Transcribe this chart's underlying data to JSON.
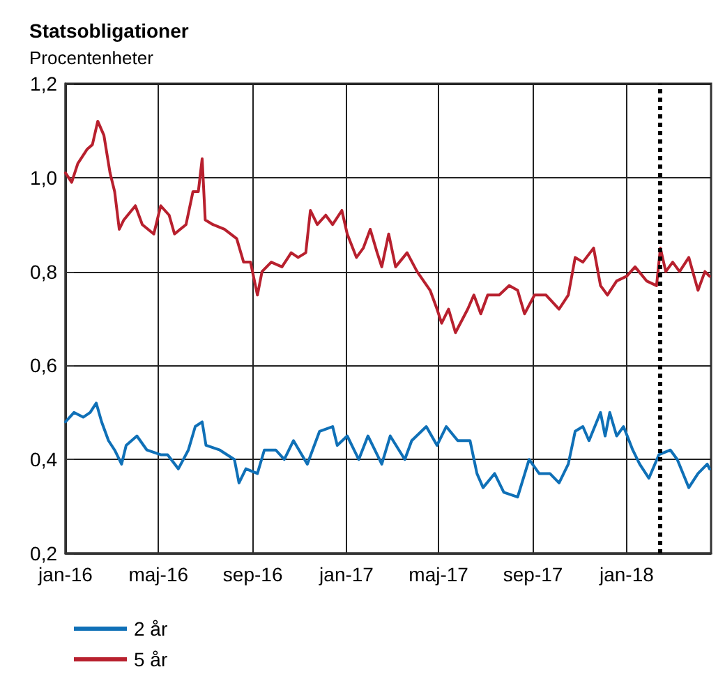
{
  "chart_data": {
    "type": "line",
    "title": "Statsobligationer",
    "subtitle": "Procentenheter",
    "xlim": [
      "2016-01-01",
      "2018-04-21"
    ],
    "xticks": [
      {
        "value": "2016-01-01",
        "label": "jan-16"
      },
      {
        "value": "2016-05-01",
        "label": "maj-16"
      },
      {
        "value": "2016-09-01",
        "label": "sep-16"
      },
      {
        "value": "2017-01-01",
        "label": "jan-17"
      },
      {
        "value": "2017-05-01",
        "label": "maj-17"
      },
      {
        "value": "2017-09-01",
        "label": "sep-17"
      },
      {
        "value": "2018-01-01",
        "label": "jan-18"
      }
    ],
    "ylim": [
      0.2,
      1.2
    ],
    "yticks": [
      {
        "value": 0.2,
        "label": "0,2"
      },
      {
        "value": 0.4,
        "label": "0,4"
      },
      {
        "value": 0.6,
        "label": "0,6"
      },
      {
        "value": 0.8,
        "label": "0,8"
      },
      {
        "value": 1.0,
        "label": "1,0"
      },
      {
        "value": 1.2,
        "label": "1,2"
      }
    ],
    "grid": true,
    "legend": "bottom left",
    "marker": "none",
    "line_style": "solid",
    "ref_lines": [
      {
        "axis": "x",
        "value": "2018-02-13",
        "color": "#000000",
        "line_style": "dotted"
      }
    ],
    "series": [
      {
        "name": "2 år",
        "color": "#0f70b7",
        "x": [
          "2016-01-01",
          "2016-01-12",
          "2016-01-24",
          "2016-02-02",
          "2016-02-10",
          "2016-02-17",
          "2016-02-26",
          "2016-03-05",
          "2016-03-14",
          "2016-03-20",
          "2016-04-03",
          "2016-04-16",
          "2016-05-04",
          "2016-05-13",
          "2016-05-27",
          "2016-06-09",
          "2016-06-18",
          "2016-06-27",
          "2016-07-02",
          "2016-07-20",
          "2016-08-08",
          "2016-08-14",
          "2016-08-23",
          "2016-09-07",
          "2016-09-16",
          "2016-10-01",
          "2016-10-12",
          "2016-10-24",
          "2016-11-11",
          "2016-11-27",
          "2016-12-14",
          "2016-12-20",
          "2017-01-02",
          "2017-01-17",
          "2017-01-29",
          "2017-02-04",
          "2017-02-16",
          "2017-02-27",
          "2017-03-18",
          "2017-03-27",
          "2017-04-15",
          "2017-04-29",
          "2017-05-11",
          "2017-05-26",
          "2017-06-11",
          "2017-06-20",
          "2017-06-28",
          "2017-07-13",
          "2017-07-25",
          "2017-08-12",
          "2017-08-27",
          "2017-09-09",
          "2017-09-23",
          "2017-10-05",
          "2017-10-17",
          "2017-10-26",
          "2017-11-05",
          "2017-11-13",
          "2017-11-28",
          "2017-12-04",
          "2017-12-10",
          "2017-12-19",
          "2017-12-28",
          "2018-01-09",
          "2018-01-18",
          "2018-01-30",
          "2018-02-12",
          "2018-02-27",
          "2018-03-08",
          "2018-03-23",
          "2018-04-04",
          "2018-04-16",
          "2018-04-19"
        ],
        "values": [
          0.48,
          0.5,
          0.49,
          0.5,
          0.52,
          0.48,
          0.44,
          0.42,
          0.39,
          0.43,
          0.45,
          0.42,
          0.41,
          0.41,
          0.38,
          0.42,
          0.47,
          0.48,
          0.43,
          0.42,
          0.4,
          0.35,
          0.38,
          0.37,
          0.42,
          0.42,
          0.4,
          0.44,
          0.39,
          0.46,
          0.47,
          0.43,
          0.45,
          0.4,
          0.45,
          0.43,
          0.39,
          0.45,
          0.4,
          0.44,
          0.47,
          0.43,
          0.47,
          0.44,
          0.44,
          0.37,
          0.34,
          0.37,
          0.33,
          0.32,
          0.4,
          0.37,
          0.37,
          0.35,
          0.39,
          0.46,
          0.47,
          0.44,
          0.5,
          0.45,
          0.5,
          0.45,
          0.47,
          0.42,
          0.39,
          0.36,
          0.41,
          0.42,
          0.4,
          0.34,
          0.37,
          0.39,
          0.38
        ]
      },
      {
        "name": "5 år",
        "color": "#b8202e",
        "x": [
          "2016-01-01",
          "2016-01-09",
          "2016-01-17",
          "2016-01-29",
          "2016-02-05",
          "2016-02-12",
          "2016-02-20",
          "2016-02-28",
          "2016-03-05",
          "2016-03-11",
          "2016-03-17",
          "2016-04-01",
          "2016-04-10",
          "2016-04-25",
          "2016-05-04",
          "2016-05-15",
          "2016-05-22",
          "2016-06-06",
          "2016-06-15",
          "2016-06-22",
          "2016-06-27",
          "2016-07-01",
          "2016-07-11",
          "2016-07-26",
          "2016-08-11",
          "2016-08-20",
          "2016-08-29",
          "2016-09-07",
          "2016-09-13",
          "2016-09-25",
          "2016-10-09",
          "2016-10-21",
          "2016-10-30",
          "2016-11-09",
          "2016-11-15",
          "2016-11-24",
          "2016-12-05",
          "2016-12-14",
          "2016-12-26",
          "2017-01-02",
          "2017-01-14",
          "2017-01-23",
          "2017-02-01",
          "2017-02-10",
          "2017-02-16",
          "2017-02-25",
          "2017-03-06",
          "2017-03-21",
          "2017-04-03",
          "2017-04-20",
          "2017-04-29",
          "2017-05-05",
          "2017-05-14",
          "2017-05-23",
          "2017-06-08",
          "2017-06-16",
          "2017-06-25",
          "2017-07-04",
          "2017-07-19",
          "2017-08-01",
          "2017-08-12",
          "2017-08-21",
          "2017-09-03",
          "2017-09-18",
          "2017-10-05",
          "2017-10-17",
          "2017-10-26",
          "2017-11-05",
          "2017-11-19",
          "2017-11-28",
          "2017-12-07",
          "2017-12-19",
          "2018-01-01",
          "2018-01-12",
          "2018-01-27",
          "2018-02-09",
          "2018-02-14",
          "2018-02-21",
          "2018-03-02",
          "2018-03-11",
          "2018-03-23",
          "2018-04-04",
          "2018-04-13",
          "2018-04-19"
        ],
        "values": [
          1.01,
          0.99,
          1.03,
          1.06,
          1.07,
          1.12,
          1.09,
          1.01,
          0.97,
          0.89,
          0.91,
          0.94,
          0.9,
          0.88,
          0.94,
          0.92,
          0.88,
          0.9,
          0.97,
          0.97,
          1.04,
          0.91,
          0.9,
          0.89,
          0.87,
          0.82,
          0.82,
          0.75,
          0.8,
          0.82,
          0.81,
          0.84,
          0.83,
          0.84,
          0.93,
          0.9,
          0.92,
          0.9,
          0.93,
          0.88,
          0.83,
          0.85,
          0.89,
          0.84,
          0.81,
          0.88,
          0.81,
          0.84,
          0.8,
          0.76,
          0.72,
          0.69,
          0.72,
          0.67,
          0.72,
          0.75,
          0.71,
          0.75,
          0.75,
          0.77,
          0.76,
          0.71,
          0.75,
          0.75,
          0.72,
          0.75,
          0.83,
          0.82,
          0.85,
          0.77,
          0.75,
          0.78,
          0.79,
          0.81,
          0.78,
          0.77,
          0.85,
          0.8,
          0.82,
          0.8,
          0.83,
          0.76,
          0.8,
          0.79
        ]
      }
    ]
  }
}
